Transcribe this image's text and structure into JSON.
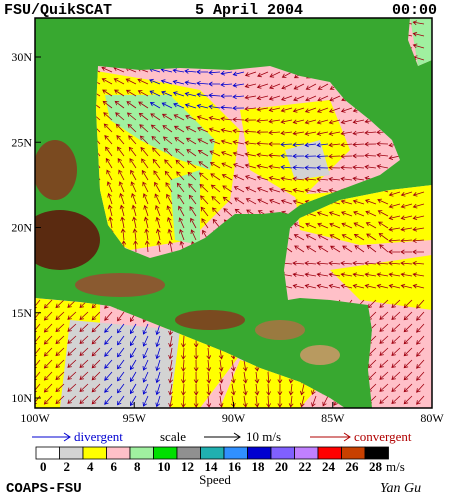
{
  "header": {
    "title": "FSU/QuikSCAT",
    "date": "5 April 2004",
    "time": "00:00"
  },
  "axes": {
    "lat_labels": [
      "30N",
      "25N",
      "20N",
      "15N",
      "10N"
    ],
    "lon_labels": [
      "100W",
      "95W",
      "90W",
      "85W",
      "80W"
    ]
  },
  "legend": {
    "divergent": "divergent",
    "scale": "scale",
    "scale_value": "10 m/s",
    "convergent": "convergent"
  },
  "colorbar": {
    "labels": [
      "0",
      "2",
      "4",
      "6",
      "8",
      "10",
      "12",
      "14",
      "16",
      "18",
      "20",
      "22",
      "24",
      "26",
      "28"
    ],
    "colors": [
      "#ffffff",
      "#d3d3d3",
      "#ffff00",
      "#ffc0c8",
      "#a0f0a0",
      "#00e000",
      "#909090",
      "#20b0b0",
      "#3090ff",
      "#0000d0",
      "#8060ff",
      "#c080ff",
      "#ff0000",
      "#c84000",
      "#000000"
    ],
    "unit": "m/s",
    "title": "Speed"
  },
  "footer": {
    "credit": "COAPS-FSU",
    "author": "Yan Gu"
  }
}
